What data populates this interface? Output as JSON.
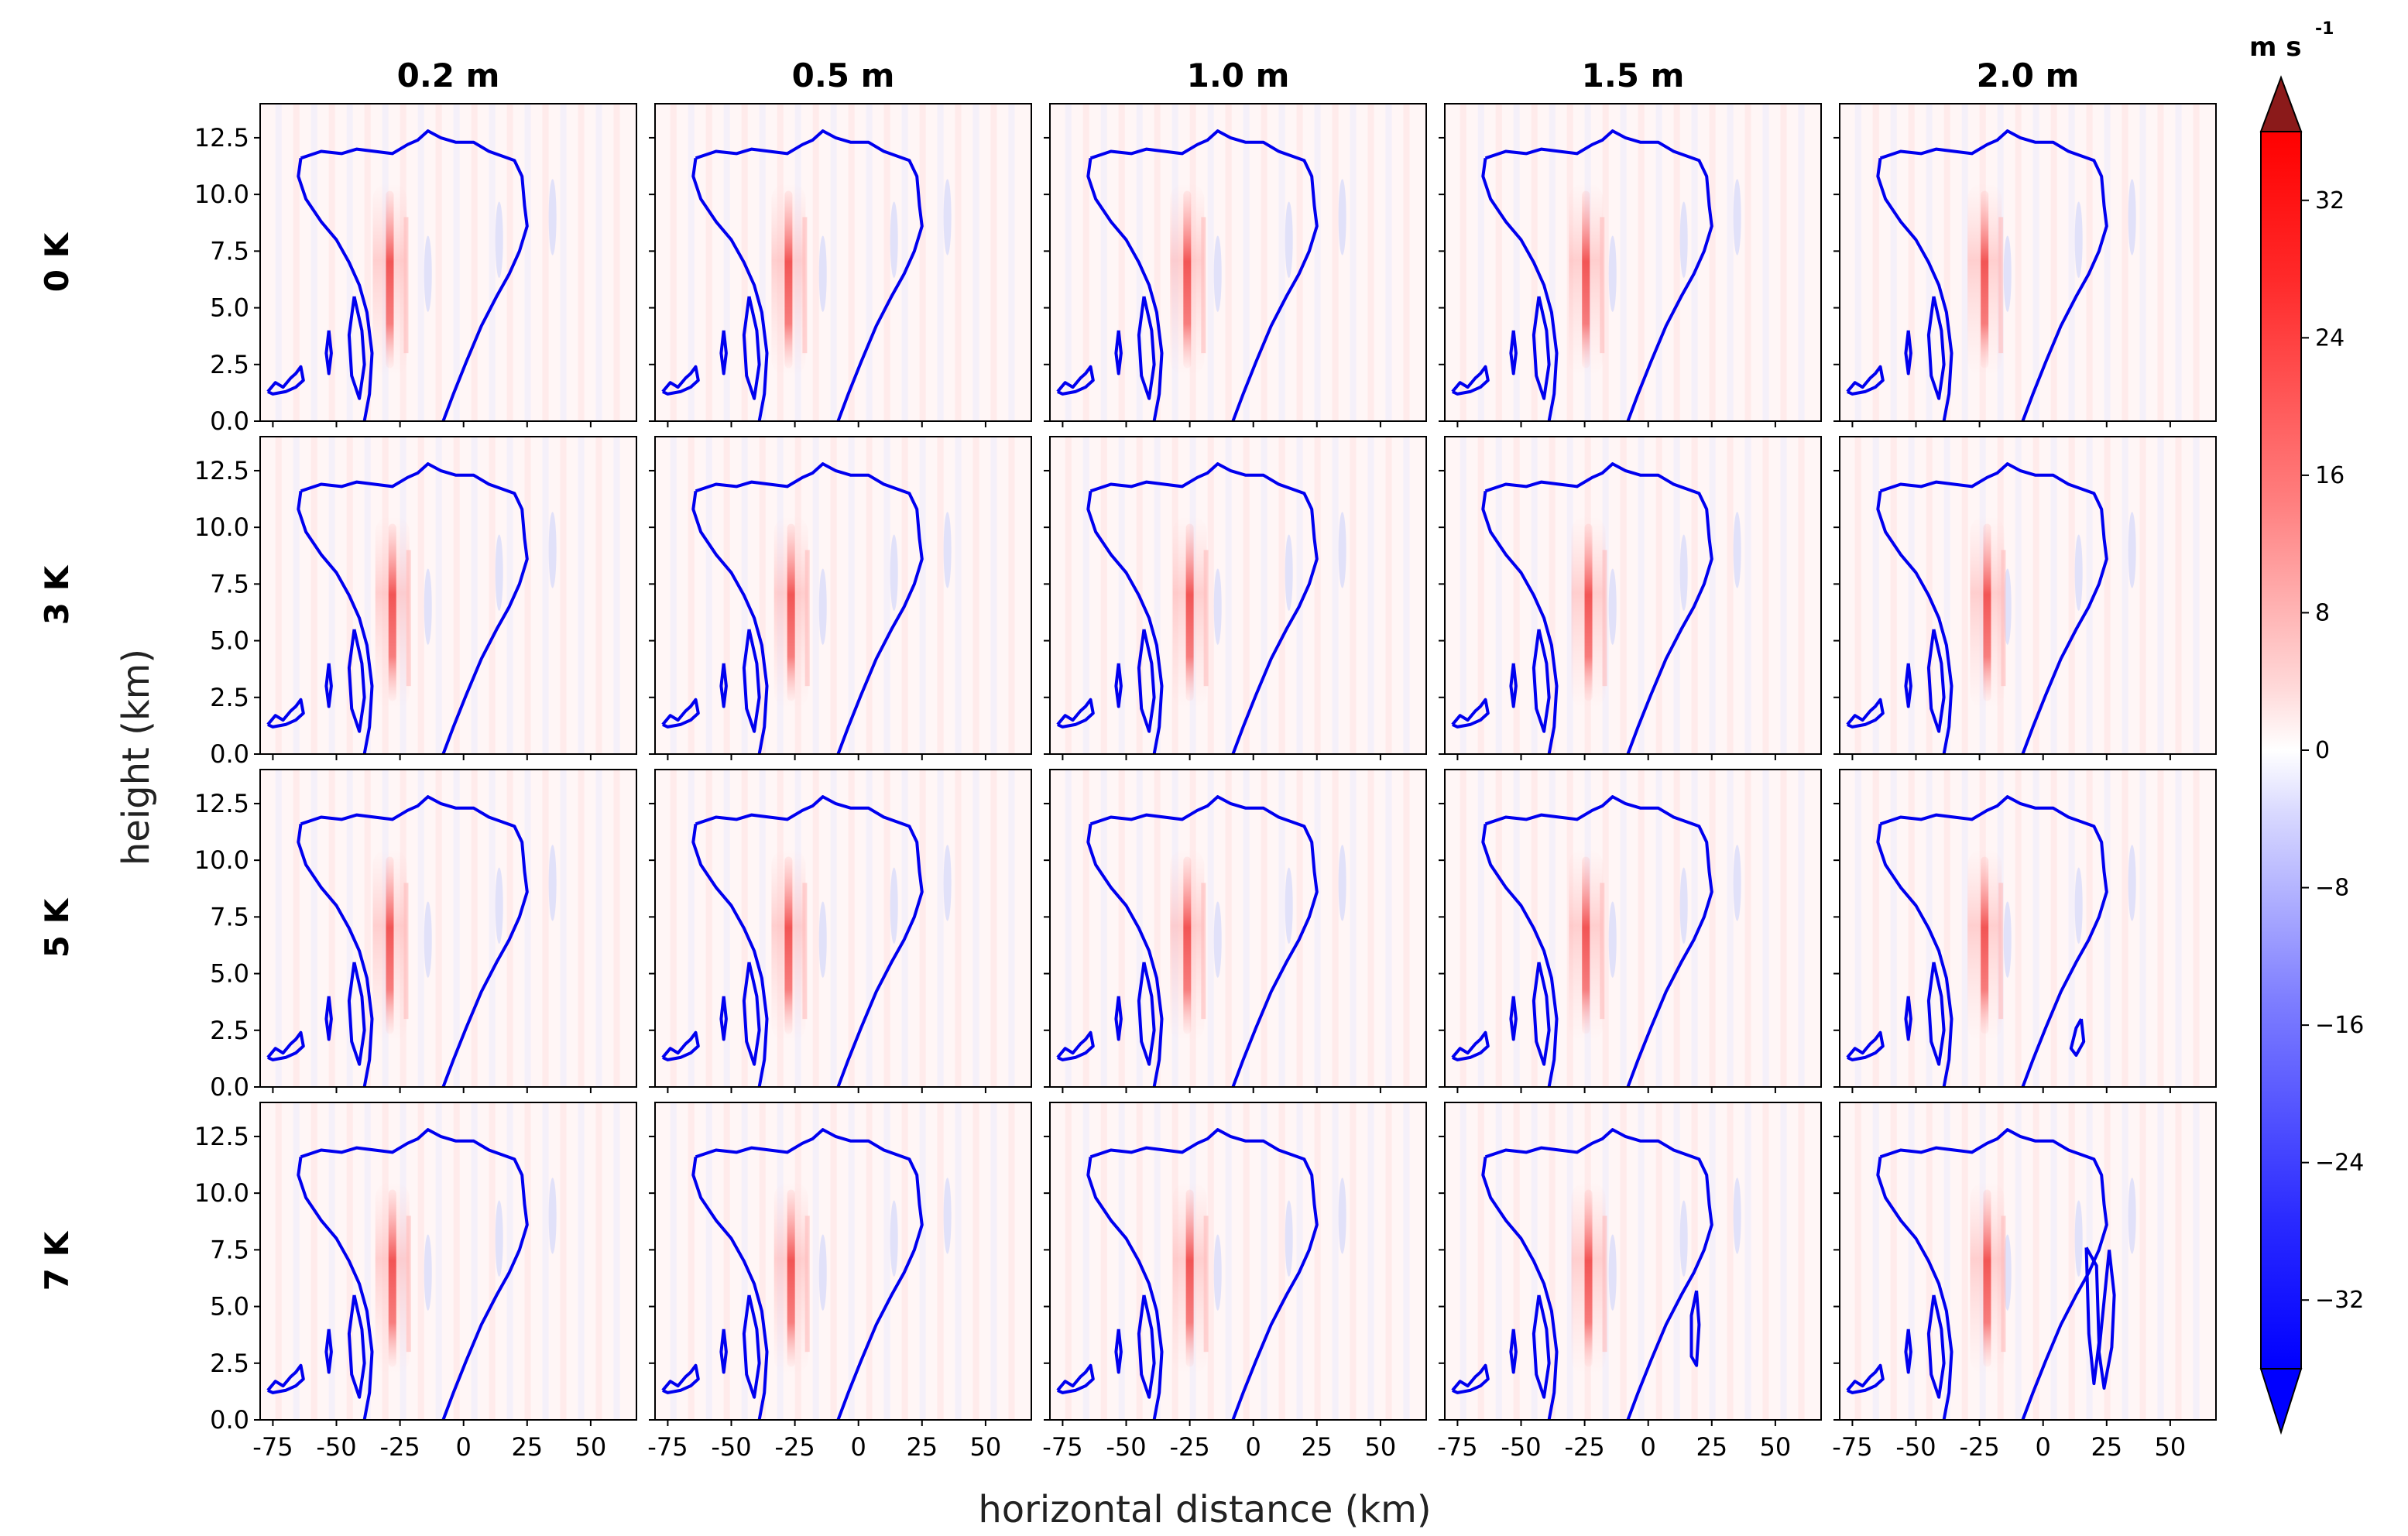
{
  "chart_data": {
    "type": "heatmap",
    "description_kind": "small-multiples contour panels",
    "xlabel": "horizontal distance (km)",
    "ylabel": "height (km)",
    "xlim": [
      -80,
      68
    ],
    "ylim": [
      0,
      14
    ],
    "x_ticks": [
      -75,
      -50,
      -25,
      0,
      25,
      50
    ],
    "x_tick_labels": [
      "-75",
      "-50",
      "-25",
      "0",
      "25",
      "50"
    ],
    "y_ticks": [
      0.0,
      2.5,
      5.0,
      7.5,
      10.0,
      12.5
    ],
    "y_tick_labels": [
      "0.0",
      "2.5",
      "5.0",
      "7.5",
      "10.0",
      "12.5"
    ],
    "columns": [
      "0.2 m",
      "0.5 m",
      "1.0 m",
      "1.5 m",
      "2.0 m"
    ],
    "rows": [
      "0 K",
      "3 K",
      "5 K",
      "7 K"
    ],
    "colorbar": {
      "unit": "m s",
      "unit_exponent": "-1",
      "range": [
        -36,
        36
      ],
      "ticks": [
        32,
        24,
        16,
        8,
        0,
        -8,
        -16,
        -24,
        -32
      ],
      "tick_labels": [
        "32",
        "24",
        "16",
        "8",
        "0",
        "−8",
        "−16",
        "−24",
        "−32"
      ],
      "colors": {
        "min": "#0000ff",
        "mid": "#ffffff",
        "max": "#ff0000",
        "over": "#8b1a1a",
        "under": "#0000ff"
      },
      "extend": "both"
    },
    "contour_color": "#0000ee",
    "anvil_outline": [
      [
        -64,
        11.6
      ],
      [
        -56,
        11.9
      ],
      [
        -48,
        11.8
      ],
      [
        -42,
        12.0
      ],
      [
        -35,
        11.9
      ],
      [
        -28,
        11.8
      ],
      [
        -22,
        12.2
      ],
      [
        -18,
        12.4
      ],
      [
        -14,
        12.8
      ],
      [
        -9,
        12.5
      ],
      [
        -3,
        12.3
      ],
      [
        4,
        12.3
      ],
      [
        10,
        11.9
      ],
      [
        15,
        11.7
      ],
      [
        20,
        11.5
      ],
      [
        23,
        10.8
      ],
      [
        24,
        9.5
      ],
      [
        25,
        8.6
      ],
      [
        22,
        7.5
      ],
      [
        18,
        6.5
      ],
      [
        13,
        5.5
      ],
      [
        7,
        4.2
      ],
      [
        1,
        2.6
      ],
      [
        -4,
        1.2
      ],
      [
        -8,
        0.0
      ]
    ],
    "anvil_left_edge": [
      [
        -64,
        11.6
      ],
      [
        -65,
        10.8
      ],
      [
        -62,
        9.8
      ],
      [
        -56,
        8.8
      ],
      [
        -50,
        8.0
      ],
      [
        -45,
        7.0
      ],
      [
        -41,
        6.0
      ],
      [
        -38,
        4.8
      ],
      [
        -36,
        3.0
      ],
      [
        -37,
        1.2
      ],
      [
        -39,
        0.0
      ]
    ],
    "cell_left": [
      [
        -43,
        5.5
      ],
      [
        -40,
        4.0
      ],
      [
        -39,
        2.5
      ],
      [
        -41,
        1.0
      ],
      [
        -44,
        2.0
      ],
      [
        -45,
        3.8
      ],
      [
        -43,
        5.5
      ]
    ],
    "cell_mid": [
      [
        -53,
        4.0
      ],
      [
        -52,
        3.0
      ],
      [
        -53,
        2.1
      ],
      [
        -54,
        3.0
      ],
      [
        -53,
        4.0
      ]
    ],
    "surface_cells": [
      [
        -77,
        1.3
      ],
      [
        -74,
        1.7
      ],
      [
        -71,
        1.5
      ],
      [
        -68,
        1.9
      ],
      [
        -66,
        2.1
      ],
      [
        -64,
        2.4
      ],
      [
        -63,
        1.8
      ],
      [
        -66,
        1.5
      ],
      [
        -70,
        1.3
      ],
      [
        -75,
        1.2
      ],
      [
        -77,
        1.3
      ]
    ],
    "updraft_core": {
      "x": -27,
      "z_range": [
        2.0,
        10.5
      ],
      "w_max": 12
    },
    "extra_cells": {
      "r2c4": [
        [
          15,
          3.0
        ],
        [
          16,
          2.0
        ],
        [
          13,
          1.4
        ],
        [
          11,
          1.7
        ],
        [
          13,
          2.6
        ],
        [
          15,
          3.0
        ]
      ],
      "r3c3": [
        [
          19,
          5.7
        ],
        [
          20,
          4.2
        ],
        [
          19,
          2.4
        ],
        [
          17,
          2.8
        ],
        [
          17,
          4.6
        ],
        [
          19,
          5.7
        ]
      ],
      "r3c4": [
        [
          17,
          7.6
        ],
        [
          21,
          6.8
        ],
        [
          22,
          3.4
        ],
        [
          20,
          1.6
        ],
        [
          18,
          3.8
        ],
        [
          17,
          7.6
        ]
      ],
      "r3c4b": [
        [
          26,
          7.5
        ],
        [
          28,
          5.5
        ],
        [
          27,
          3.2
        ],
        [
          24,
          1.4
        ],
        [
          22,
          3.0
        ],
        [
          26,
          7.5
        ]
      ]
    }
  }
}
